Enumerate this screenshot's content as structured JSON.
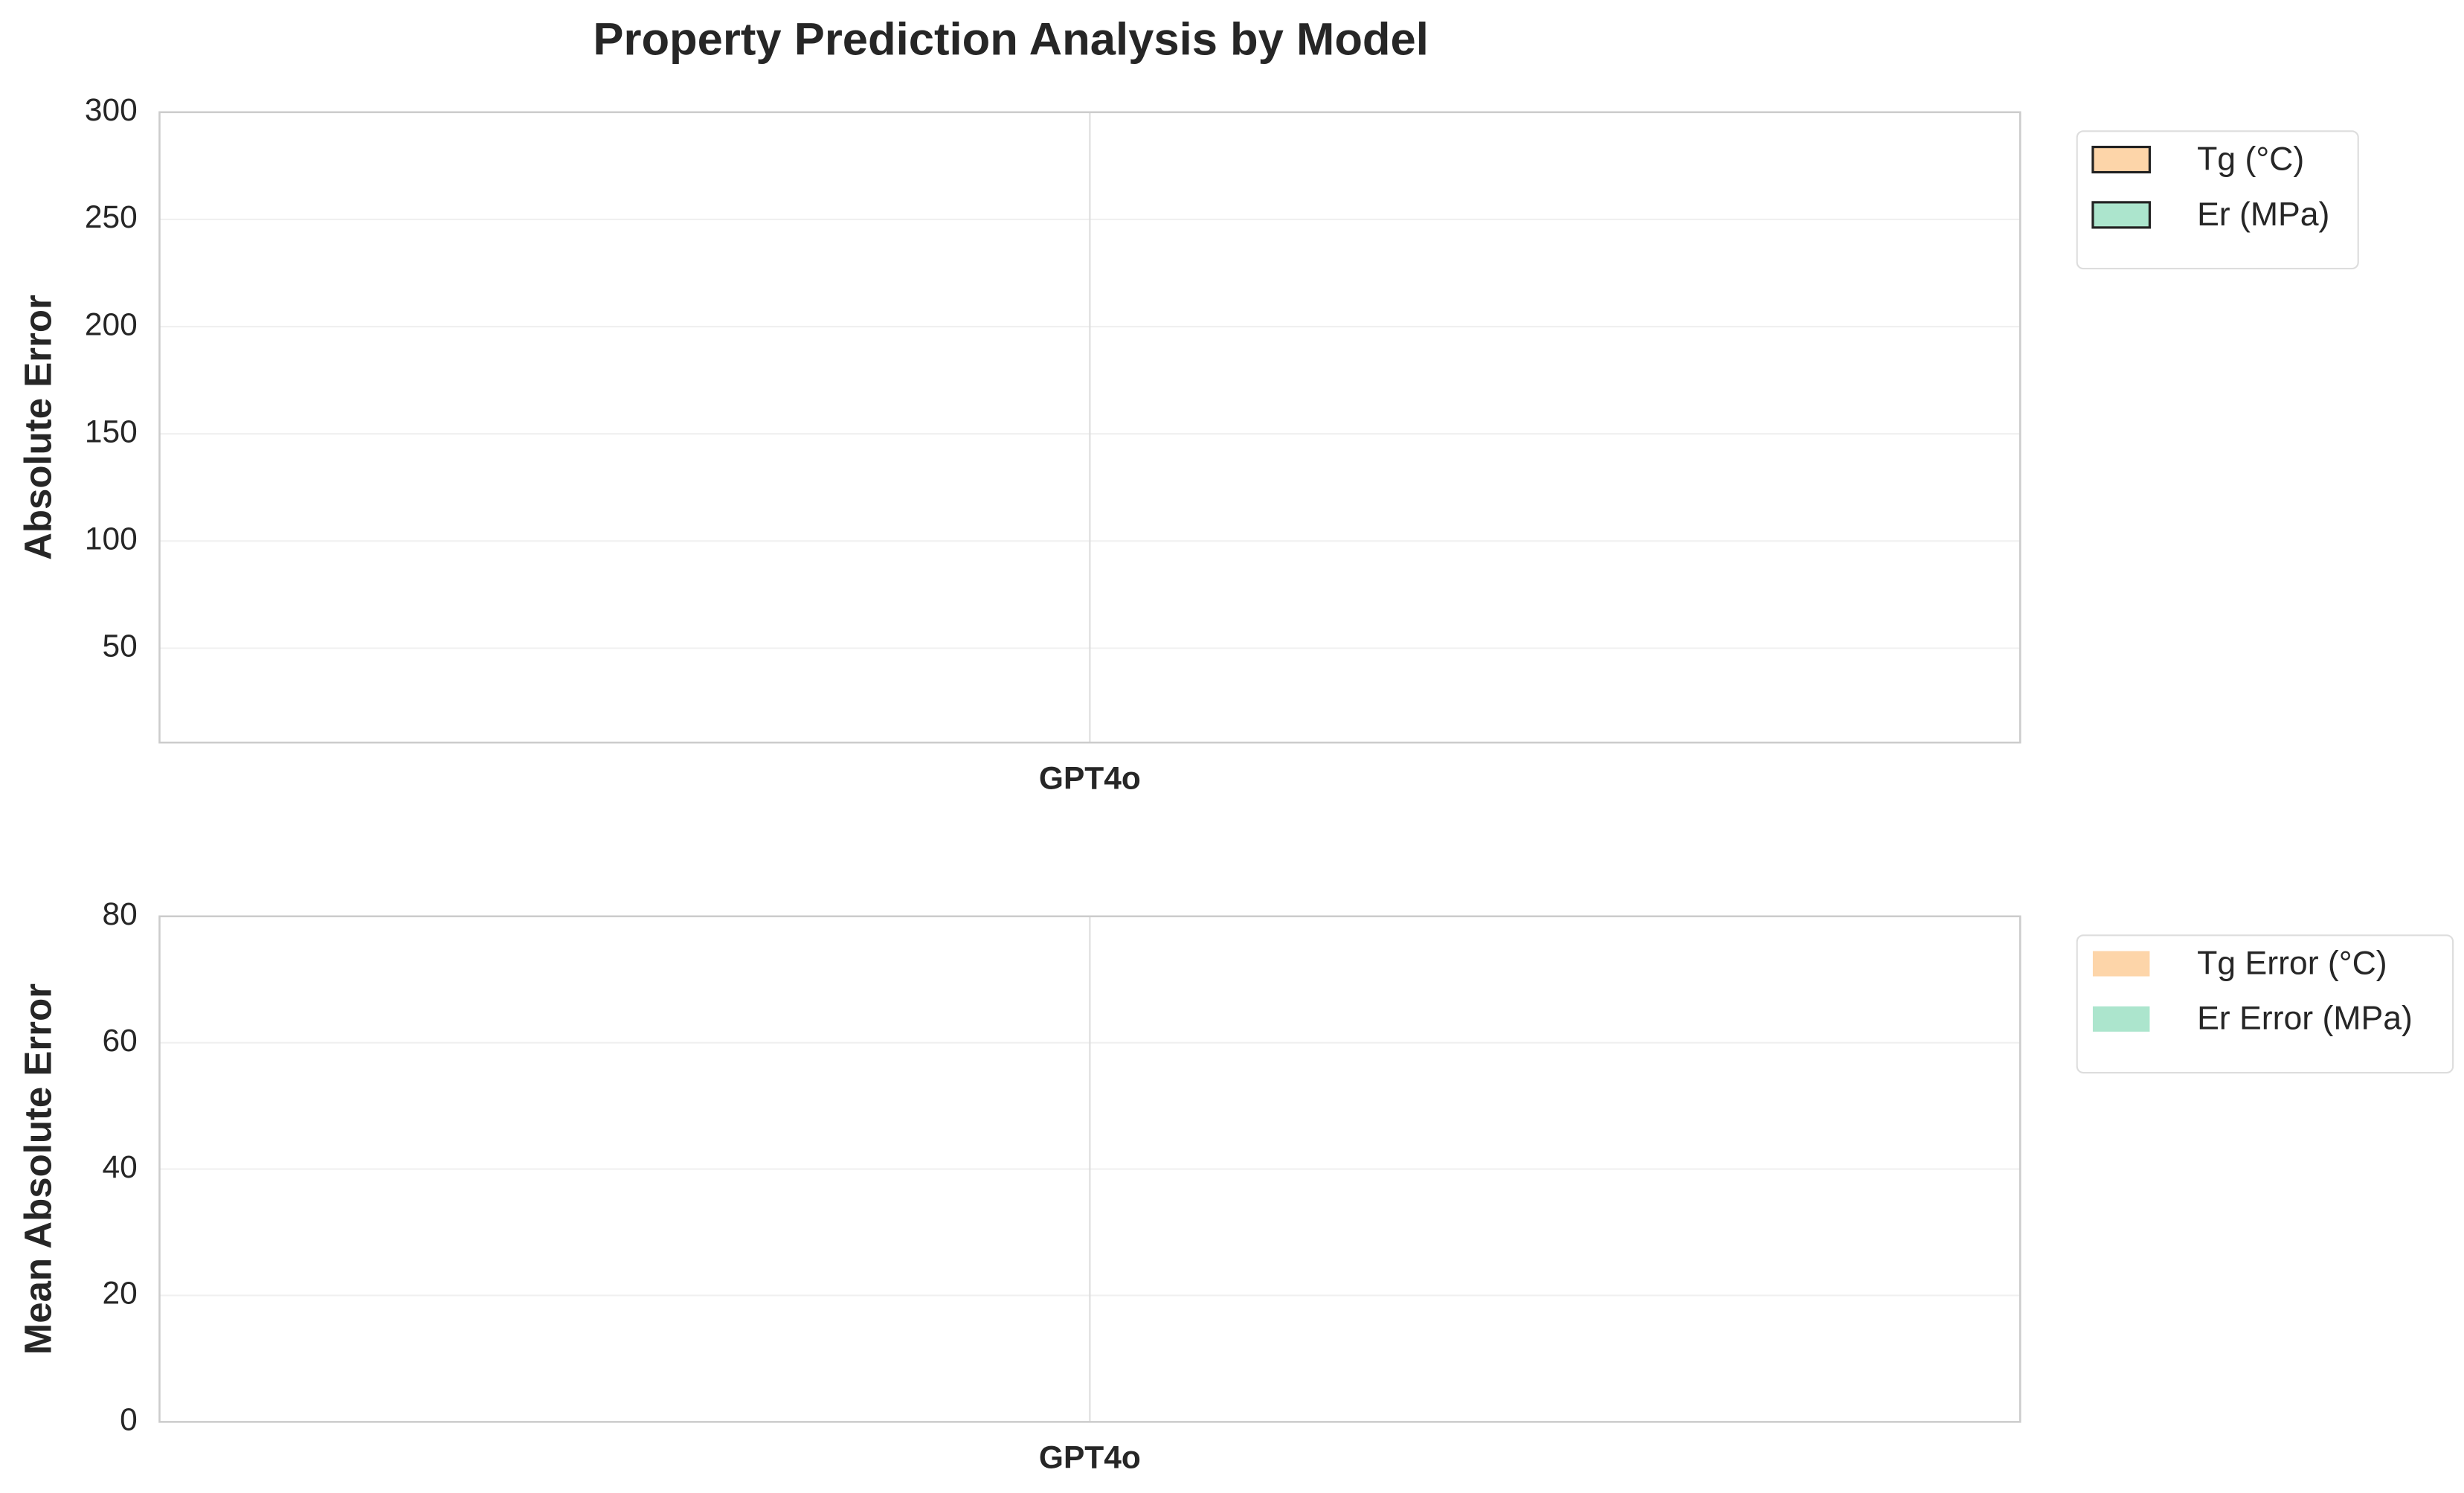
{
  "chart_data": [
    {
      "type": "bar",
      "title": "Property Prediction Analysis by Model",
      "ylabel": "Absolute Error",
      "categories": [
        "GPT4o"
      ],
      "series": [
        {
          "name": "Tg (°C)",
          "color": "#fdd5a9",
          "edgecolor": "#222222",
          "values": [
            null
          ]
        },
        {
          "name": "Er (MPa)",
          "color": "#ace5cd",
          "edgecolor": "#222222",
          "values": [
            null
          ]
        }
      ],
      "ylim": [
        6,
        300
      ],
      "yticks": [
        50,
        100,
        150,
        200,
        250,
        300
      ],
      "grid": true,
      "legend": "right"
    },
    {
      "type": "bar",
      "ylabel": "Mean Absolute Error",
      "categories": [
        "GPT4o"
      ],
      "series": [
        {
          "name": "Tg Error (°C)",
          "color": "#fdd5a9",
          "values": [
            null
          ]
        },
        {
          "name": "Er Error (MPa)",
          "color": "#ace5cd",
          "values": [
            null
          ]
        }
      ],
      "ylim": [
        0,
        80
      ],
      "yticks": [
        0,
        20,
        40,
        60,
        80
      ],
      "grid": true,
      "legend": "right"
    }
  ]
}
